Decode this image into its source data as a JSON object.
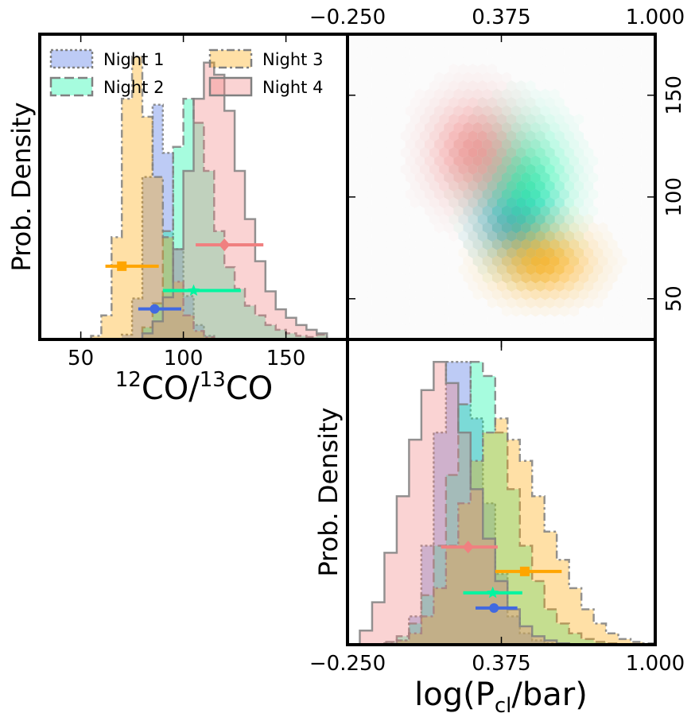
{
  "colors": {
    "Night 1": "#4169e1",
    "Night 2": "#00f5a0",
    "Night 3": "#ffa500",
    "Night 4": "#f08080"
  },
  "legend": {
    "placement": "upper-left",
    "entries": [
      "Night 1",
      "Night 2",
      "Night 3",
      "Night 4"
    ]
  },
  "chart_data": [
    {
      "id": "hist_co_ratio",
      "type": "histogram",
      "xlabel": {
        "main": "CO/",
        "sup1": "12",
        "sup2": "13",
        "tail": "CO"
      },
      "ylabel": "Prob. Density",
      "xlim": [
        30,
        180
      ],
      "xticks": [
        50,
        100,
        150
      ],
      "x": [
        30,
        35,
        40,
        45,
        50,
        55,
        60,
        65,
        70,
        75,
        80,
        85,
        90,
        95,
        100,
        105,
        110,
        115,
        120,
        125,
        130,
        135,
        140,
        145,
        150,
        155,
        160,
        165,
        170,
        175,
        180
      ],
      "series": [
        {
          "name": "Night 1",
          "linestyle": "dotted",
          "density": [
            0,
            0,
            0,
            0,
            0,
            0,
            0,
            0,
            0.004,
            0.034,
            0.135,
            0.195,
            0.155,
            0.075,
            0.036,
            0.012,
            0.003,
            0,
            0,
            0,
            0,
            0,
            0,
            0,
            0,
            0,
            0,
            0,
            0,
            0
          ],
          "marker": "circle",
          "point": 86,
          "err": [
            78,
            99
          ],
          "y_fraction": 0.1
        },
        {
          "name": "Night 2",
          "linestyle": "dashed",
          "density": [
            0,
            0,
            0,
            0,
            0,
            0,
            0,
            0,
            0,
            0,
            0.01,
            0.03,
            0.09,
            0.16,
            0.2,
            0.18,
            0.14,
            0.09,
            0.06,
            0.042,
            0.028,
            0.02,
            0.012,
            0.008,
            0.005,
            0.003,
            0.002,
            0.004,
            0,
            0
          ],
          "marker": "star",
          "point": 105,
          "err": [
            90,
            128
          ],
          "y_fraction": 0.16
        },
        {
          "name": "Night 3",
          "linestyle": "dashdot",
          "density": [
            0,
            0,
            0,
            0,
            0,
            0.003,
            0.02,
            0.085,
            0.2,
            0.235,
            0.185,
            0.135,
            0.085,
            0.048,
            0.02,
            0.007,
            0.002,
            0,
            0,
            0,
            0,
            0,
            0,
            0,
            0,
            0,
            0,
            0,
            0,
            0
          ],
          "marker": "square",
          "point": 70,
          "err": [
            62,
            88
          ],
          "y_fraction": 0.24
        },
        {
          "name": "Night 4",
          "linestyle": "solid",
          "density": [
            0,
            0,
            0,
            0,
            0,
            0,
            0,
            0,
            0,
            0,
            0.005,
            0.015,
            0.035,
            0.075,
            0.14,
            0.2,
            0.23,
            0.22,
            0.19,
            0.14,
            0.1,
            0.065,
            0.04,
            0.025,
            0.018,
            0.012,
            0.008,
            0.005,
            0,
            0
          ],
          "marker": "diamond",
          "point": 120,
          "err": [
            106,
            139
          ],
          "y_fraction": 0.31
        }
      ]
    },
    {
      "id": "joint_hexbin",
      "type": "hexbin",
      "xlim": [
        -0.25,
        1.0
      ],
      "ylim": [
        30,
        180
      ],
      "xticks": [
        -0.25,
        0.375,
        1.0
      ],
      "xtick_labels": [
        "−0.250",
        "0.375",
        "1.000"
      ],
      "yticks": [
        50,
        100,
        150
      ],
      "blobs": [
        {
          "name": "Night 1",
          "cx": 0.43,
          "cy": 88,
          "sx": 0.09,
          "sy": 12
        },
        {
          "name": "Night 2",
          "cx": 0.46,
          "cy": 105,
          "sx": 0.12,
          "sy": 20
        },
        {
          "name": "Night 3",
          "cx": 0.54,
          "cy": 68,
          "sx": 0.13,
          "sy": 11
        },
        {
          "name": "Night 4",
          "cx": 0.27,
          "cy": 122,
          "sx": 0.12,
          "sy": 17
        }
      ]
    },
    {
      "id": "hist_pcl",
      "type": "histogram",
      "xlabel": {
        "pre": "log(P",
        "sub": "cl",
        "post": "/bar)"
      },
      "ylabel": "Prob. Density",
      "xlim": [
        -0.25,
        1.0
      ],
      "xticks": [
        -0.25,
        0.375,
        1.0
      ],
      "xtick_labels": [
        "−0.250",
        "0.375",
        "1.000"
      ],
      "x": [
        -0.25,
        -0.2,
        -0.15,
        -0.1,
        -0.05,
        0.0,
        0.05,
        0.1,
        0.15,
        0.2,
        0.25,
        0.3,
        0.35,
        0.4,
        0.45,
        0.5,
        0.55,
        0.6,
        0.65,
        0.7,
        0.75,
        0.8,
        0.85,
        0.9,
        0.95,
        1.0
      ],
      "series": [
        {
          "name": "Night 1",
          "linestyle": "dotted",
          "density": [
            0,
            0,
            0,
            0,
            0.003,
            0.02,
            0.07,
            0.15,
            0.2,
            0.2,
            0.16,
            0.1,
            0.05,
            0.02,
            0.008,
            0.003,
            0.001,
            0,
            0,
            0,
            0,
            0,
            0,
            0,
            0
          ],
          "marker": "circle",
          "point": 0.345,
          "err": [
            0.27,
            0.44
          ],
          "y_fraction": 0.12
        },
        {
          "name": "Night 2",
          "linestyle": "dashed",
          "density": [
            0,
            0,
            0,
            0.002,
            0.006,
            0.015,
            0.035,
            0.07,
            0.12,
            0.17,
            0.2,
            0.19,
            0.15,
            0.11,
            0.07,
            0.045,
            0.025,
            0.015,
            0.008,
            0.004,
            0.002,
            0.001,
            0,
            0,
            0
          ],
          "marker": "star",
          "point": 0.34,
          "err": [
            0.22,
            0.46
          ],
          "y_fraction": 0.17
        },
        {
          "name": "Night 3",
          "linestyle": "dashdot",
          "density": [
            0,
            0,
            0,
            0.001,
            0.003,
            0.008,
            0.02,
            0.04,
            0.07,
            0.1,
            0.13,
            0.15,
            0.16,
            0.145,
            0.13,
            0.105,
            0.08,
            0.06,
            0.04,
            0.025,
            0.015,
            0.008,
            0.004,
            0.002,
            0.001
          ],
          "marker": "square",
          "point": 0.47,
          "err": [
            0.35,
            0.62
          ],
          "y_fraction": 0.24
        },
        {
          "name": "Night 4",
          "linestyle": "solid",
          "density": [
            0,
            0.01,
            0.03,
            0.065,
            0.105,
            0.145,
            0.18,
            0.2,
            0.185,
            0.15,
            0.11,
            0.075,
            0.045,
            0.025,
            0.013,
            0.006,
            0.003,
            0.001,
            0,
            0,
            0,
            0,
            0,
            0,
            0
          ],
          "marker": "diamond",
          "point": 0.24,
          "err": [
            0.13,
            0.36
          ],
          "y_fraction": 0.32
        }
      ]
    }
  ]
}
